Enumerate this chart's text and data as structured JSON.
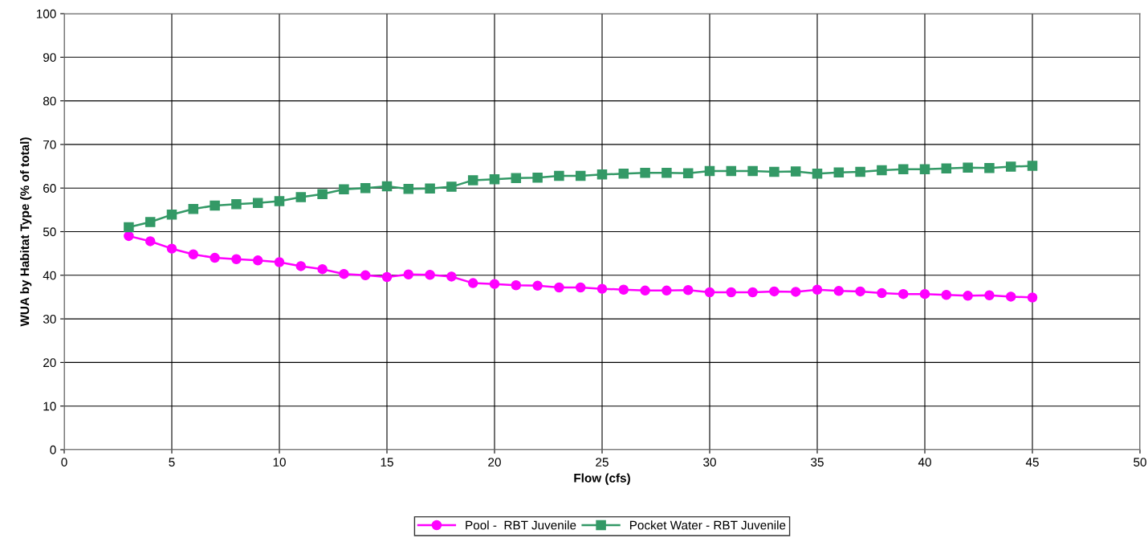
{
  "chart_data": {
    "type": "line",
    "xlabel": "Flow (cfs)",
    "ylabel": "WUA by Habitat Type (% of total)",
    "x": [
      3,
      4,
      5,
      6,
      7,
      8,
      9,
      10,
      11,
      12,
      13,
      14,
      15,
      16,
      17,
      18,
      19,
      20,
      21,
      22,
      23,
      24,
      25,
      26,
      27,
      28,
      29,
      30,
      31,
      32,
      33,
      34,
      35,
      36,
      37,
      38,
      39,
      40,
      41,
      42,
      43,
      44,
      45
    ],
    "series": [
      {
        "name": "Pool -  RBT Juvenile",
        "color": "#ff00ff",
        "marker": "circle",
        "values": [
          49.0,
          47.8,
          46.1,
          44.8,
          44.0,
          43.7,
          43.4,
          43.0,
          42.1,
          41.4,
          40.3,
          40.0,
          39.6,
          40.2,
          40.1,
          39.7,
          38.2,
          38.0,
          37.7,
          37.6,
          37.2,
          37.2,
          36.9,
          36.7,
          36.5,
          36.5,
          36.6,
          36.1,
          36.1,
          36.1,
          36.3,
          36.2,
          36.7,
          36.4,
          36.3,
          35.9,
          35.7,
          35.7,
          35.5,
          35.3,
          35.4,
          35.1,
          34.9
        ]
      },
      {
        "name": "Pocket Water - RBT Juvenile",
        "color": "#339966",
        "marker": "square",
        "values": [
          51.0,
          52.2,
          53.9,
          55.2,
          56.0,
          56.3,
          56.6,
          57.0,
          57.9,
          58.6,
          59.7,
          60.0,
          60.4,
          59.8,
          59.9,
          60.3,
          61.8,
          62.0,
          62.3,
          62.4,
          62.8,
          62.8,
          63.1,
          63.3,
          63.5,
          63.5,
          63.4,
          63.9,
          63.9,
          63.9,
          63.7,
          63.8,
          63.3,
          63.6,
          63.7,
          64.1,
          64.3,
          64.3,
          64.5,
          64.7,
          64.6,
          64.9,
          65.1
        ]
      }
    ],
    "xlim": [
      0,
      50
    ],
    "xticks": [
      0,
      5,
      10,
      15,
      20,
      25,
      30,
      35,
      40,
      45,
      50
    ],
    "ylim": [
      0,
      100
    ],
    "yticks": [
      0,
      10,
      20,
      30,
      40,
      50,
      60,
      70,
      80,
      90,
      100
    ],
    "grid": true,
    "legend": "bottom",
    "line_style": "solid"
  }
}
